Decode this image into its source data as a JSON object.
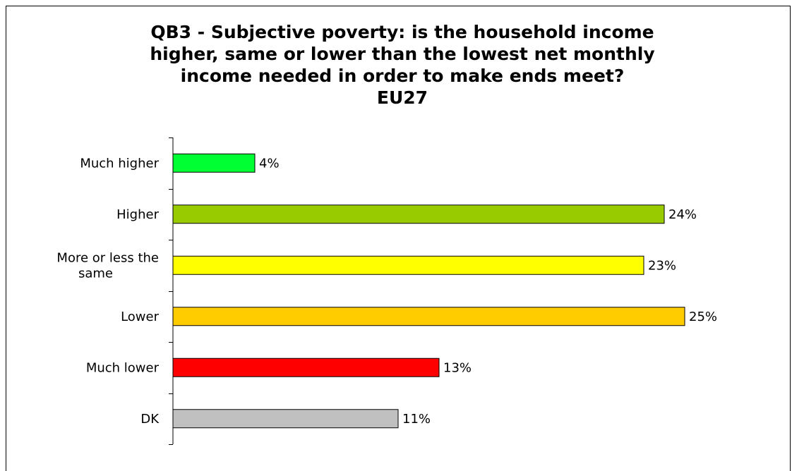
{
  "chart_data": {
    "type": "bar",
    "orientation": "horizontal",
    "title_lines": [
      "QB3 - Subjective poverty: is the household income",
      "higher, same or lower than the lowest net monthly",
      "income needed in order to make ends meet?",
      "EU27"
    ],
    "categories": [
      [
        "Much higher"
      ],
      [
        "Higher"
      ],
      [
        "More or less the",
        "same"
      ],
      [
        "Lower"
      ],
      [
        "Much lower"
      ],
      [
        "DK"
      ]
    ],
    "values": [
      4,
      24,
      23,
      25,
      13,
      11
    ],
    "value_labels": [
      "4%",
      "24%",
      "23%",
      "25%",
      "13%",
      "11%"
    ],
    "colors": [
      "#00ff33",
      "#99cc00",
      "#ffff00",
      "#ffcc00",
      "#ff0000",
      "#c0c0c0"
    ],
    "xlim": [
      0,
      25
    ],
    "grid": false,
    "legend": "none"
  }
}
